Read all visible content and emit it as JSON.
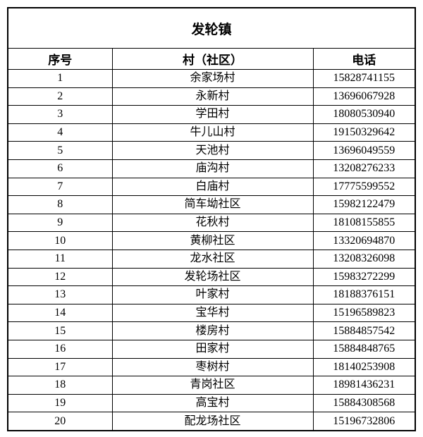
{
  "table": {
    "title": "发轮镇",
    "headers": [
      "序号",
      "村（社区）",
      "电话"
    ],
    "rows": [
      [
        "1",
        "余家场村",
        "15828741155"
      ],
      [
        "2",
        "永新村",
        "13696067928"
      ],
      [
        "3",
        "学田村",
        "18080530940"
      ],
      [
        "4",
        "牛儿山村",
        "19150329642"
      ],
      [
        "5",
        "天池村",
        "13696049559"
      ],
      [
        "6",
        "庙沟村",
        "13208276233"
      ],
      [
        "7",
        "白庙村",
        "17775599552"
      ],
      [
        "8",
        "简车坳社区",
        "15982122479"
      ],
      [
        "9",
        "花秋村",
        "18108155855"
      ],
      [
        "10",
        "黄柳社区",
        "13320694870"
      ],
      [
        "11",
        "龙水社区",
        "13208326098"
      ],
      [
        "12",
        "发轮场社区",
        "15983272299"
      ],
      [
        "13",
        "叶家村",
        "18188376151"
      ],
      [
        "14",
        "宝华村",
        "15196589823"
      ],
      [
        "15",
        "楼房村",
        "15884857542"
      ],
      [
        "16",
        "田家村",
        "15884848765"
      ],
      [
        "17",
        "枣树村",
        "18140253908"
      ],
      [
        "18",
        "青岗社区",
        "18981436231"
      ],
      [
        "19",
        "高宝村",
        "15884308568"
      ],
      [
        "20",
        "配龙场社区",
        "15196732806"
      ]
    ]
  }
}
